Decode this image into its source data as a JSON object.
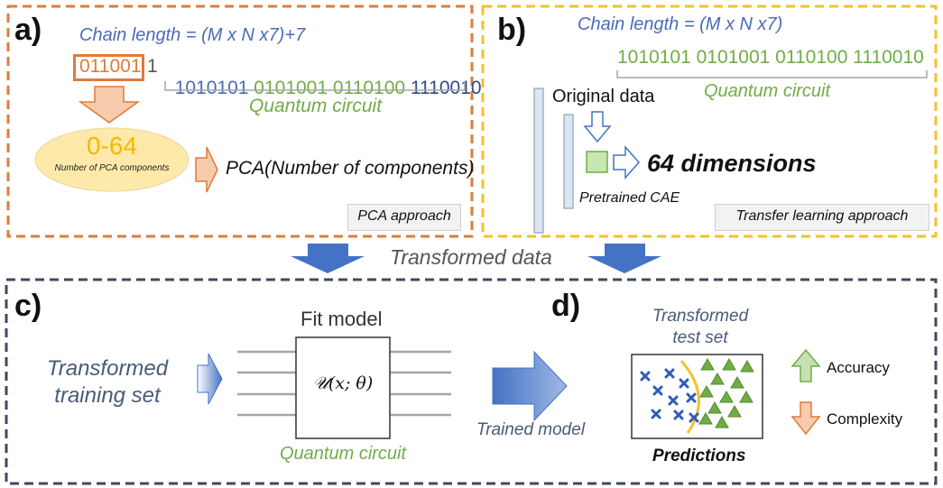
{
  "panel_a": {
    "label": "a)",
    "chain_length": "Chain length = (M x N x7)+7",
    "bits_highlight": "011001",
    "bits_rest": "1 ",
    "groups": [
      {
        "a": "1010101",
        "b": ""
      },
      {
        "a": "0101001",
        "b": ""
      },
      {
        "a": "0110100",
        "b": ""
      },
      {
        "a": "1110010",
        "b": ""
      }
    ],
    "quantum_circuit": "Quantum circuit",
    "pca_range": "0-64",
    "pca_sub": "Number of PCA components",
    "pca_text": "PCA(Number of components)",
    "tag": "PCA approach"
  },
  "panel_b": {
    "label": "b)",
    "chain_length": "Chain length = (M x N x7)",
    "bits": "1010101 0101001 0110100 1110010",
    "quantum_circuit": "Quantum circuit",
    "original_data": "Original data",
    "dimensions": "64 dimensions",
    "pretrained": "Pretrained CAE",
    "tag": "Transfer learning approach"
  },
  "transformed_data": "Transformed data",
  "panel_c": {
    "label": "c)",
    "training_line1": "Transformed",
    "training_line2": "training set",
    "fit_model": "Fit model",
    "unitary": "𝒰(x; θ)",
    "quantum_circuit": "Quantum circuit",
    "trained_model": "Trained model"
  },
  "panel_d": {
    "label": "d)",
    "test_line1": "Transformed",
    "test_line2": "test set",
    "predictions": "Predictions",
    "accuracy": "Accuracy",
    "complexity": "Complexity"
  },
  "colors": {
    "orange": "#e07b39",
    "yellow": "#f3c12b",
    "navy": "#3e4a5e",
    "blue_arrow": "#4472c4",
    "green_text": "#70ad47",
    "blue_text": "#4a6bb8"
  }
}
